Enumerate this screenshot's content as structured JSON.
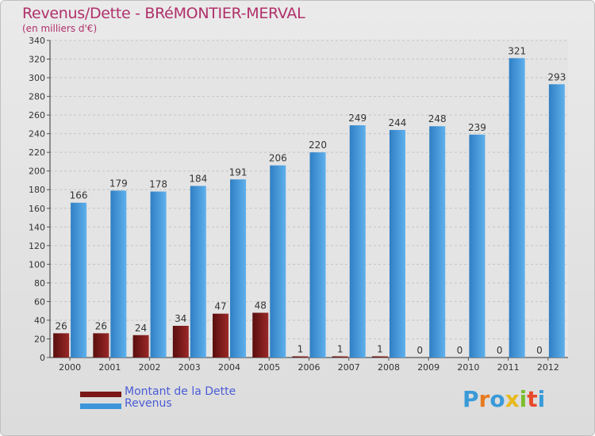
{
  "chart_data": {
    "type": "bar",
    "title": "Revenus/Dette - BRéMONTIER-MERVAL",
    "subtitle": "(en milliers d'€)",
    "categories": [
      "2000",
      "2001",
      "2002",
      "2003",
      "2004",
      "2005",
      "2006",
      "2007",
      "2008",
      "2009",
      "2010",
      "2011",
      "2012"
    ],
    "series": [
      {
        "name": "Montant de la Dette",
        "color": "#7b1717",
        "values": [
          26,
          26,
          24,
          34,
          47,
          48,
          1,
          1,
          1,
          0,
          0,
          0,
          0
        ]
      },
      {
        "name": "Revenus",
        "color": "#3d95dc",
        "values": [
          166,
          179,
          178,
          184,
          191,
          206,
          220,
          249,
          244,
          248,
          239,
          321,
          293
        ]
      }
    ],
    "ylim": [
      0,
      340
    ],
    "ytick_step": 20,
    "grid": true,
    "legend": "bottom-left"
  },
  "brand": {
    "letters": [
      {
        "ch": "P",
        "color": "#3a9ad9"
      },
      {
        "ch": "r",
        "color": "#e67a1f"
      },
      {
        "ch": "o",
        "color": "#3a9ad9"
      },
      {
        "ch": "x",
        "color": "#e8b91c"
      },
      {
        "ch": "i",
        "color": "#7cbf2f"
      },
      {
        "ch": "t",
        "color": "#e84a2a"
      },
      {
        "ch": "i",
        "color": "#3a9ad9"
      }
    ]
  }
}
